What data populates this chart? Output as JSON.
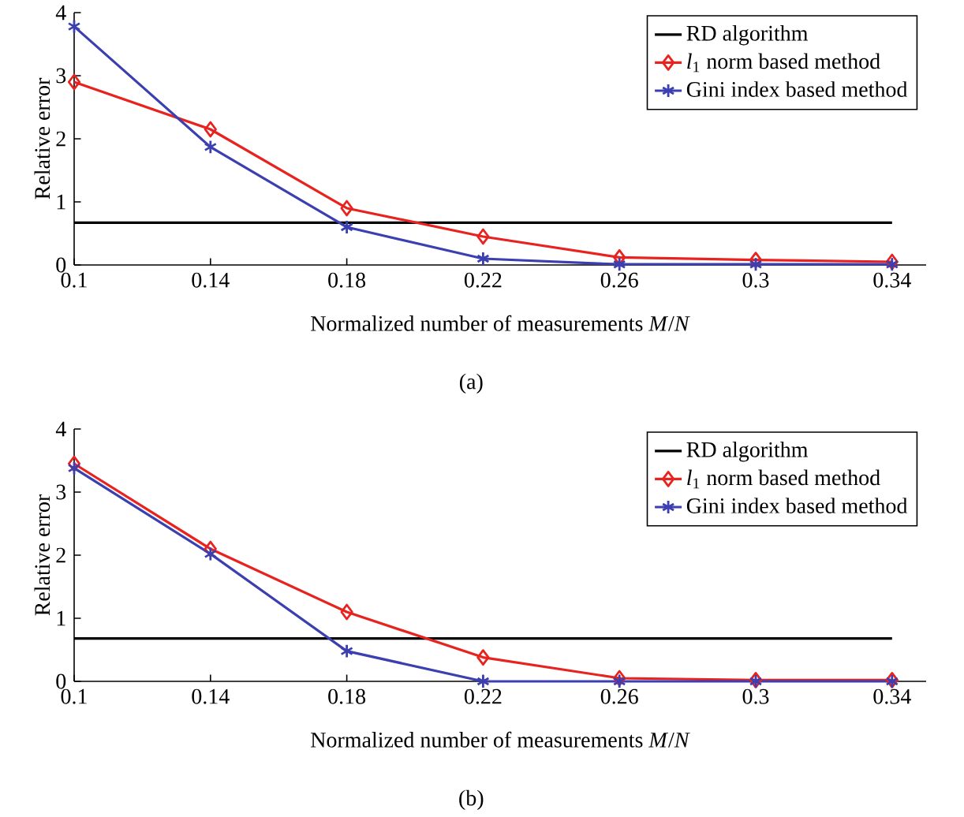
{
  "chart_data": [
    {
      "type": "line",
      "xlabel": "Normalized number of measurements *M*/*N*",
      "ylabel": "Relative error",
      "x": [
        0.1,
        0.14,
        0.18,
        0.22,
        0.26,
        0.3,
        0.34
      ],
      "xlim": [
        0.1,
        0.35
      ],
      "ylim": [
        0,
        4
      ],
      "xticks": [
        0.1,
        0.14,
        0.18,
        0.22,
        0.26,
        0.3,
        0.34
      ],
      "yticks": [
        0,
        1,
        2,
        3,
        4
      ],
      "legend": "top right",
      "annotations": [
        "(a)"
      ],
      "series": [
        {
          "name": "RD algorithm",
          "color": "#000000",
          "marker": "none",
          "values": [
            0.67,
            0.67,
            0.67,
            0.67,
            0.67,
            0.67,
            0.67
          ]
        },
        {
          "name": "*l*$_{1}$ norm based method",
          "color": "#e8231f",
          "marker": "diamond",
          "values": [
            2.9,
            2.15,
            0.9,
            0.45,
            0.12,
            0.08,
            0.05
          ]
        },
        {
          "name": "Gini index based method",
          "color": "#3b3fb0",
          "marker": "cross",
          "values": [
            3.78,
            1.87,
            0.6,
            0.1,
            0.01,
            0.01,
            0.01
          ]
        }
      ]
    },
    {
      "type": "line",
      "xlabel": "Normalized number of measurements *M*/*N*",
      "ylabel": "Relative error",
      "x": [
        0.1,
        0.14,
        0.18,
        0.22,
        0.26,
        0.3,
        0.34
      ],
      "xlim": [
        0.1,
        0.35
      ],
      "ylim": [
        0,
        4
      ],
      "xticks": [
        0.1,
        0.14,
        0.18,
        0.22,
        0.26,
        0.3,
        0.34
      ],
      "yticks": [
        0,
        1,
        2,
        3,
        4
      ],
      "legend": "top right",
      "annotations": [
        "(b)"
      ],
      "series": [
        {
          "name": "RD algorithm",
          "color": "#000000",
          "marker": "none",
          "values": [
            0.68,
            0.68,
            0.68,
            0.68,
            0.68,
            0.68,
            0.68
          ]
        },
        {
          "name": "*l*$_{1}$ norm based method",
          "color": "#e8231f",
          "marker": "diamond",
          "values": [
            3.45,
            2.1,
            1.1,
            0.38,
            0.05,
            0.02,
            0.02
          ]
        },
        {
          "name": "Gini index based method",
          "color": "#3b3fb0",
          "marker": "cross",
          "values": [
            3.38,
            2.02,
            0.48,
            0.0,
            0.0,
            0.0,
            0.0
          ]
        }
      ]
    }
  ]
}
